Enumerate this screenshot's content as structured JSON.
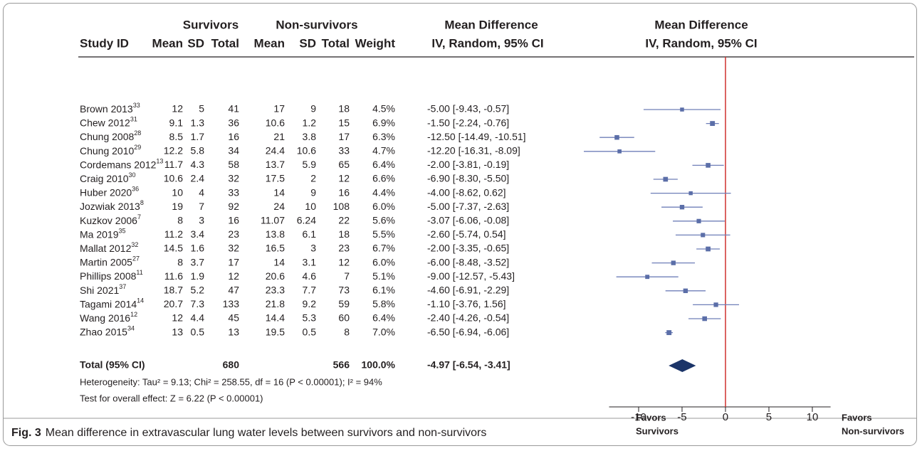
{
  "chart_data": {
    "type": "forest",
    "headers": {
      "study": "Study ID",
      "survivors": "Survivors",
      "non_survivors": "Non-survivors",
      "mean": "Mean",
      "sd": "SD",
      "total": "Total",
      "weight": "Weight",
      "md_title": "Mean Difference",
      "md_method": "IV, Random, 95% CI"
    },
    "studies": [
      {
        "name": "Brown 2013",
        "ref": "33",
        "survivors": [
          12,
          5,
          41
        ],
        "non_survivors": [
          17,
          9,
          18
        ],
        "weight": 4.5,
        "weight_label": "4.5%",
        "md": -5.0,
        "ci": [
          -9.43,
          -0.57
        ],
        "md_label": "-5.00 [-9.43, -0.57]"
      },
      {
        "name": "Chew 2012",
        "ref": "31",
        "survivors": [
          9.1,
          1.3,
          36
        ],
        "non_survivors": [
          10.6,
          1.2,
          15
        ],
        "weight": 6.9,
        "weight_label": "6.9%",
        "md": -1.5,
        "ci": [
          -2.24,
          -0.76
        ],
        "md_label": "-1.50 [-2.24, -0.76]"
      },
      {
        "name": "Chung 2008",
        "ref": "28",
        "survivors": [
          8.5,
          1.7,
          16
        ],
        "non_survivors": [
          21,
          3.8,
          17
        ],
        "weight": 6.3,
        "weight_label": "6.3%",
        "md": -12.5,
        "ci": [
          -14.49,
          -10.51
        ],
        "md_label": "-12.50 [-14.49, -10.51]"
      },
      {
        "name": "Chung 2010",
        "ref": "29",
        "survivors": [
          12.2,
          5.8,
          34
        ],
        "non_survivors": [
          24.4,
          10.6,
          33
        ],
        "weight": 4.7,
        "weight_label": "4.7%",
        "md": -12.2,
        "ci": [
          -16.31,
          -8.09
        ],
        "md_label": "-12.20 [-16.31, -8.09]"
      },
      {
        "name": "Cordemans 2012",
        "ref": "13",
        "survivors": [
          11.7,
          4.3,
          58
        ],
        "non_survivors": [
          13.7,
          5.9,
          65
        ],
        "weight": 6.4,
        "weight_label": "6.4%",
        "md": -2.0,
        "ci": [
          -3.81,
          -0.19
        ],
        "md_label": "-2.00 [-3.81, -0.19]"
      },
      {
        "name": "Craig 2010",
        "ref": "30",
        "survivors": [
          10.6,
          2.4,
          32
        ],
        "non_survivors": [
          17.5,
          2,
          12
        ],
        "weight": 6.6,
        "weight_label": "6.6%",
        "md": -6.9,
        "ci": [
          -8.3,
          -5.5
        ],
        "md_label": "-6.90 [-8.30, -5.50]"
      },
      {
        "name": "Huber 2020",
        "ref": "36",
        "survivors": [
          10,
          4,
          33
        ],
        "non_survivors": [
          14,
          9,
          16
        ],
        "weight": 4.4,
        "weight_label": "4.4%",
        "md": -4.0,
        "ci": [
          -8.62,
          0.62
        ],
        "md_label": "-4.00 [-8.62, 0.62]"
      },
      {
        "name": "Jozwiak 2013",
        "ref": "8",
        "survivors": [
          19,
          7,
          92
        ],
        "non_survivors": [
          24,
          10,
          108
        ],
        "weight": 6.0,
        "weight_label": "6.0%",
        "md": -5.0,
        "ci": [
          -7.37,
          -2.63
        ],
        "md_label": "-5.00 [-7.37, -2.63]"
      },
      {
        "name": "Kuzkov 2006",
        "ref": "7",
        "survivors": [
          8,
          3,
          16
        ],
        "non_survivors": [
          11.07,
          6.24,
          22
        ],
        "weight": 5.6,
        "weight_label": "5.6%",
        "md": -3.07,
        "ci": [
          -6.06,
          -0.08
        ],
        "md_label": "-3.07 [-6.06, -0.08]"
      },
      {
        "name": "Ma 2019",
        "ref": "35",
        "survivors": [
          11.2,
          3.4,
          23
        ],
        "non_survivors": [
          13.8,
          6.1,
          18
        ],
        "weight": 5.5,
        "weight_label": "5.5%",
        "md": -2.6,
        "ci": [
          -5.74,
          0.54
        ],
        "md_label": "-2.60 [-5.74, 0.54]"
      },
      {
        "name": "Mallat 2012",
        "ref": "32",
        "survivors": [
          14.5,
          1.6,
          32
        ],
        "non_survivors": [
          16.5,
          3,
          23
        ],
        "weight": 6.7,
        "weight_label": "6.7%",
        "md": -2.0,
        "ci": [
          -3.35,
          -0.65
        ],
        "md_label": "-2.00 [-3.35, -0.65]"
      },
      {
        "name": "Martin 2005",
        "ref": "27",
        "survivors": [
          8,
          3.7,
          17
        ],
        "non_survivors": [
          14,
          3.1,
          12
        ],
        "weight": 6.0,
        "weight_label": "6.0%",
        "md": -6.0,
        "ci": [
          -8.48,
          -3.52
        ],
        "md_label": "-6.00 [-8.48, -3.52]"
      },
      {
        "name": "Phillips 2008",
        "ref": "11",
        "survivors": [
          11.6,
          1.9,
          12
        ],
        "non_survivors": [
          20.6,
          4.6,
          7
        ],
        "weight": 5.1,
        "weight_label": "5.1%",
        "md": -9.0,
        "ci": [
          -12.57,
          -5.43
        ],
        "md_label": "-9.00 [-12.57, -5.43]"
      },
      {
        "name": "Shi 2021",
        "ref": "37",
        "survivors": [
          18.7,
          5.2,
          47
        ],
        "non_survivors": [
          23.3,
          7.7,
          73
        ],
        "weight": 6.1,
        "weight_label": "6.1%",
        "md": -4.6,
        "ci": [
          -6.91,
          -2.29
        ],
        "md_label": "-4.60 [-6.91, -2.29]"
      },
      {
        "name": "Tagami 2014",
        "ref": "14",
        "survivors": [
          20.7,
          7.3,
          133
        ],
        "non_survivors": [
          21.8,
          9.2,
          59
        ],
        "weight": 5.8,
        "weight_label": "5.8%",
        "md": -1.1,
        "ci": [
          -3.76,
          1.56
        ],
        "md_label": "-1.10 [-3.76, 1.56]"
      },
      {
        "name": "Wang 2016",
        "ref": "12",
        "survivors": [
          12,
          4.4,
          45
        ],
        "non_survivors": [
          14.4,
          5.3,
          60
        ],
        "weight": 6.4,
        "weight_label": "6.4%",
        "md": -2.4,
        "ci": [
          -4.26,
          -0.54
        ],
        "md_label": "-2.40 [-4.26, -0.54]"
      },
      {
        "name": "Zhao 2015",
        "ref": "34",
        "survivors": [
          13,
          0.5,
          13
        ],
        "non_survivors": [
          19.5,
          0.5,
          8
        ],
        "weight": 7.0,
        "weight_label": "7.0%",
        "md": -6.5,
        "ci": [
          -6.94,
          -6.06
        ],
        "md_label": "-6.50 [-6.94, -6.06]"
      }
    ],
    "total": {
      "name": "Total (95% CI)",
      "survivors_total": 680,
      "non_survivors_total": 566,
      "weight": 100,
      "weight_label": "100.0%",
      "md": -4.97,
      "ci": [
        -6.54,
        -3.41
      ],
      "md_label": "-4.97 [-6.54, -3.41]"
    },
    "heterogeneity": "Heterogeneity: Tau² = 9.13; Chi² = 258.55, df = 16 (P < 0.00001); I² = 94%",
    "overall_effect": "Test for overall effect: Z = 6.22 (P < 0.00001)",
    "xlim": [
      -13.4,
      12.1
    ],
    "xticks": [
      -10,
      -5,
      0,
      5,
      10
    ],
    "favors_left": [
      "Favors",
      "Survivors"
    ],
    "favors_right": [
      "Favors",
      "Non-survivors"
    ],
    "square_color": "#5b6ea8",
    "ci_color": "#6f7fb8",
    "diamond_color": "#1b3468",
    "null_line_color": "#d0312d",
    "caption": {
      "label": "Fig. 3",
      "text": "Mean difference in extravascular lung water levels between survivors and non-survivors"
    }
  }
}
